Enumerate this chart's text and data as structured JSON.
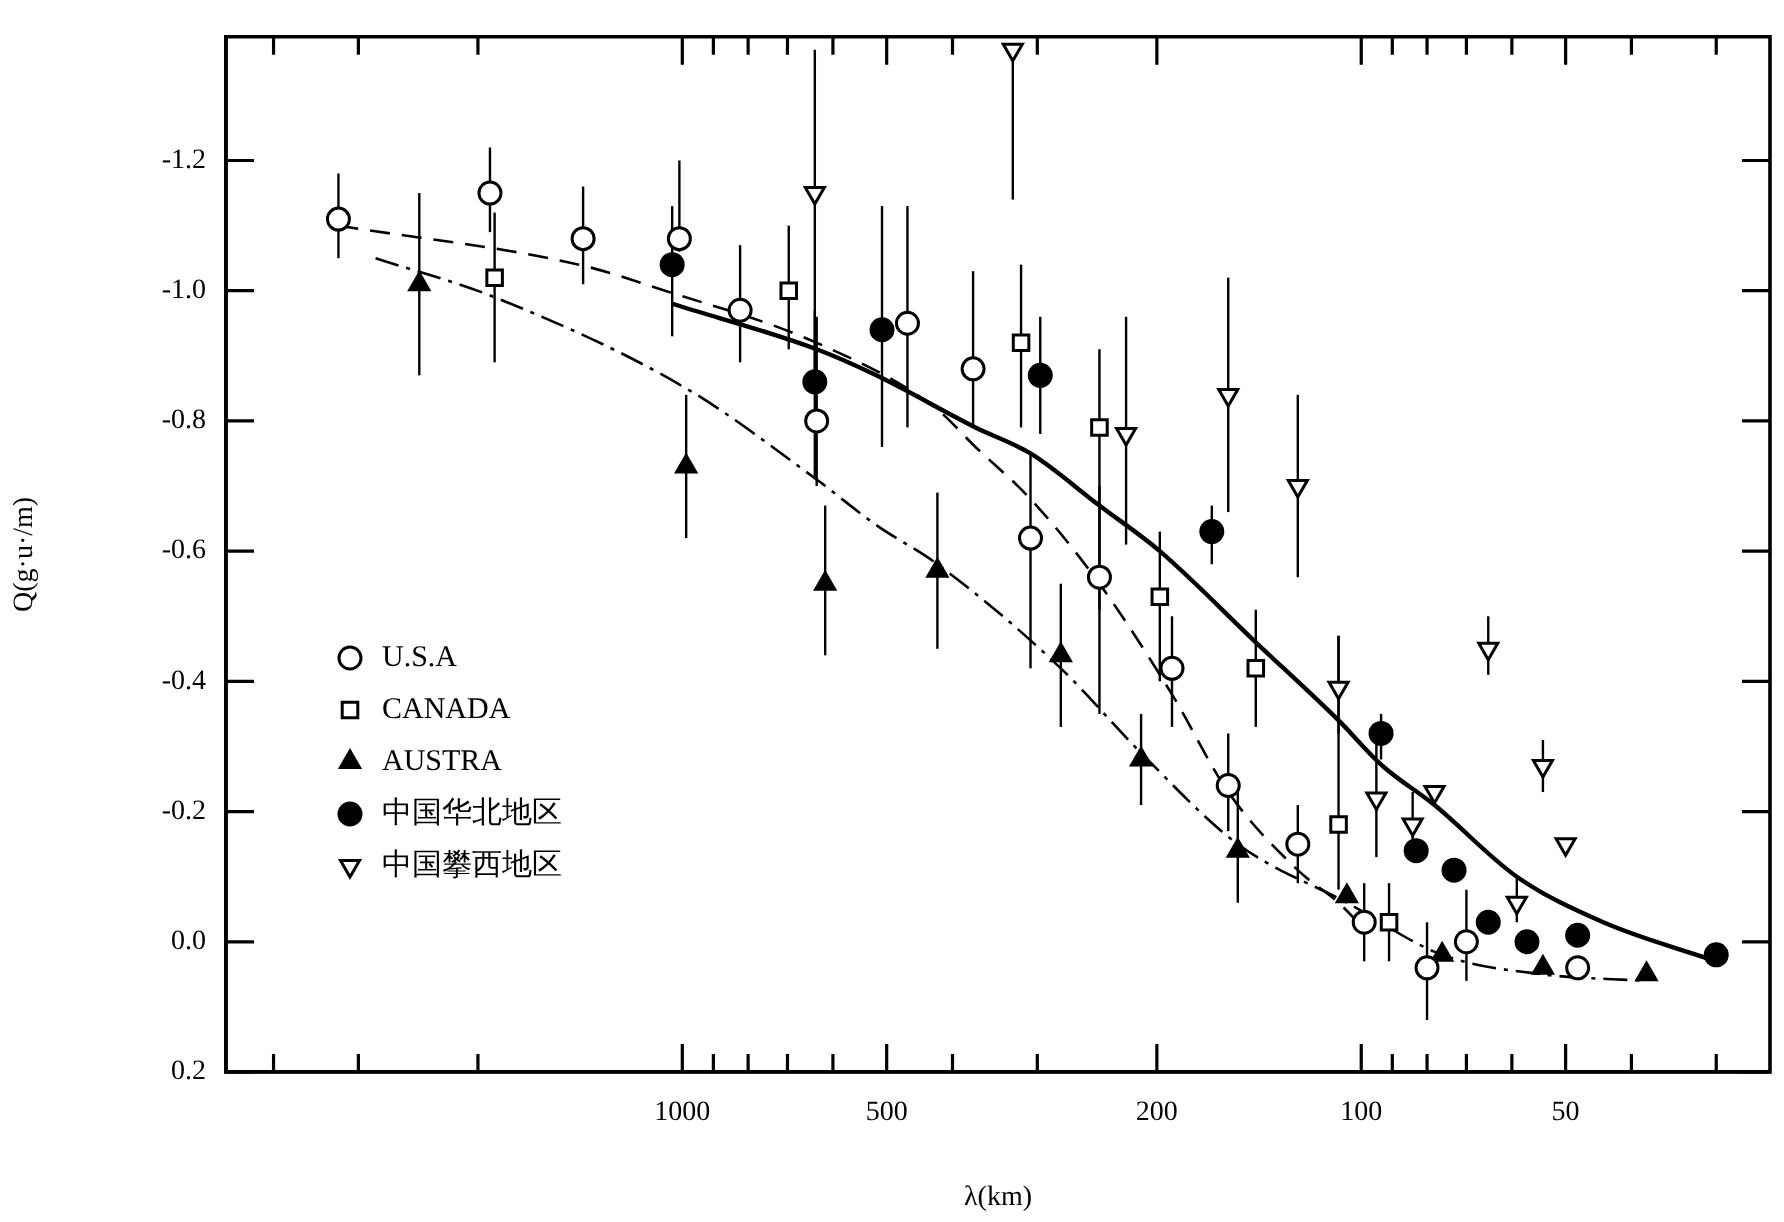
{
  "chart_data": {
    "type": "scatter",
    "xlabel": "λ(km)",
    "ylabel": "Q(g·u·/m)",
    "log": "x",
    "legend": "bottom left",
    "xlim": [
      4700,
      25
    ],
    "ylim": [
      0.2,
      -1.39
    ],
    "xticks": [
      {
        "value": 4000,
        "label": null
      },
      {
        "value": 3000,
        "label": null
      },
      {
        "value": 2000,
        "label": null
      },
      1000,
      {
        "value": 900,
        "label": null
      },
      {
        "value": 800,
        "label": null
      },
      {
        "value": 700,
        "label": null
      },
      {
        "value": 600,
        "label": null
      },
      500,
      {
        "value": 400,
        "label": null
      },
      {
        "value": 300,
        "label": null
      },
      200,
      100,
      {
        "value": 90,
        "label": null
      },
      {
        "value": 80,
        "label": null
      },
      {
        "value": 70,
        "label": null
      },
      {
        "value": 60,
        "label": null
      },
      50,
      {
        "value": 40,
        "label": null
      },
      {
        "value": 30,
        "label": null
      }
    ],
    "yticks": [
      -1.2,
      {
        "value": -1,
        "label": "-1.0"
      },
      -0.8,
      -0.6,
      -0.4,
      -0.2,
      {
        "value": 0,
        "label": "0.0"
      },
      0.2
    ],
    "series": [
      {
        "name": "U.S.A",
        "color": "#000000",
        "marker": "circle-open",
        "x": [
          3210,
          1920,
          1400,
          1010,
          822,
          634,
          466,
          373,
          307,
          243,
          190,
          157,
          124,
          99,
          80,
          70,
          48
        ],
        "values": [
          -1.11,
          -1.15,
          -1.08,
          -1.08,
          -0.97,
          -0.8,
          -0.95,
          -0.88,
          -0.62,
          -0.56,
          -0.42,
          -0.24,
          -0.15,
          -0.03,
          0.04,
          0.0,
          0.04
        ],
        "errors": [
          [
            -1.18,
            -1.05
          ],
          [
            -1.22,
            -1.09
          ],
          [
            -1.16,
            -1.01
          ],
          [
            -1.2,
            -1.06
          ],
          [
            -1.07,
            -0.89
          ],
          [
            -0.96,
            -0.7
          ],
          [
            -1.13,
            -0.79
          ],
          [
            -1.03,
            -0.79
          ],
          [
            -0.75,
            -0.42
          ],
          [
            -0.7,
            -0.35
          ],
          [
            -0.5,
            -0.33
          ],
          [
            -0.32,
            -0.17
          ],
          [
            -0.21,
            -0.09
          ],
          [
            -0.09,
            0.03
          ],
          [
            -0.03,
            0.12
          ],
          [
            -0.08,
            0.06
          ],
          null
        ]
      },
      {
        "name": "CANADA",
        "color": "#000000",
        "marker": "square-open",
        "x": [
          1890,
          697,
          317,
          243,
          198,
          143,
          108,
          91
        ],
        "values": [
          -1.02,
          -1.0,
          -0.92,
          -0.79,
          -0.53,
          -0.42,
          -0.18,
          -0.03
        ],
        "errors": [
          [
            -1.12,
            -0.89
          ],
          [
            -1.1,
            -0.91
          ],
          [
            -1.04,
            -0.79
          ],
          [
            -0.91,
            -0.51
          ],
          [
            -0.63,
            -0.4
          ],
          [
            -0.51,
            -0.33
          ],
          [
            -0.47,
            -0.08
          ],
          [
            -0.09,
            0.03
          ]
        ]
      },
      {
        "name": "AUSTRA",
        "color": "#000000",
        "marker": "triangle",
        "x": [
          2440,
          987,
          616,
          421,
          277,
          211,
          152,
          105,
          76,
          54,
          38
        ],
        "values": [
          -1.01,
          -0.73,
          -0.55,
          -0.57,
          -0.44,
          -0.28,
          -0.14,
          -0.07,
          0.02,
          0.04,
          0.05
        ],
        "errors": [
          [
            -1.15,
            -0.87
          ],
          [
            -0.84,
            -0.62
          ],
          [
            -0.67,
            -0.44
          ],
          [
            -0.69,
            -0.45
          ],
          [
            -0.55,
            -0.33
          ],
          [
            -0.35,
            -0.21
          ],
          [
            -0.24,
            -0.06
          ],
          null,
          null,
          null,
          null
        ]
      },
      {
        "name": "中国华北地区",
        "color": "#000000",
        "marker": "circle",
        "x": [
          1035,
          638,
          508,
          297,
          166,
          93.5,
          83,
          73,
          65,
          57,
          48,
          30
        ],
        "values": [
          -1.04,
          -0.86,
          -0.94,
          -0.87,
          -0.63,
          -0.32,
          -0.14,
          -0.11,
          -0.03,
          0.0,
          -0.01,
          0.02
        ],
        "errors": [
          [
            -1.13,
            -0.93
          ],
          [
            -0.97,
            -0.71
          ],
          [
            -1.13,
            -0.76
          ],
          [
            -0.96,
            -0.78
          ],
          [
            -0.67,
            -0.58
          ],
          [
            -0.35,
            -0.28
          ],
          null,
          null,
          null,
          null,
          null,
          null
        ]
      },
      {
        "name": "中国攀西地区",
        "color": "#000000",
        "marker": "triangle-down-open",
        "x": [
          638,
          326,
          222,
          157,
          124,
          108,
          95,
          84,
          78,
          65,
          59,
          54,
          50
        ],
        "values": [
          -1.15,
          -1.37,
          -0.78,
          -0.84,
          -0.7,
          -0.39,
          -0.22,
          -0.18,
          -0.23,
          -0.45,
          -0.06,
          -0.27,
          -0.15
        ],
        "errors": [
          [
            -1.37,
            -0.85
          ],
          [
            -1.37,
            -1.14
          ],
          [
            -0.96,
            -0.61
          ],
          [
            -1.02,
            -0.66
          ],
          [
            -0.84,
            -0.56
          ],
          [
            -0.47,
            -0.32
          ],
          [
            -0.32,
            -0.13
          ],
          [
            -0.23,
            -0.13
          ],
          null,
          [
            -0.5,
            -0.41
          ],
          [
            -0.1,
            -0.03
          ],
          [
            -0.31,
            -0.23
          ],
          null
        ]
      },
      {
        "type": "line",
        "color": "#000000",
        "line_style": "solid",
        "x": [
          1035,
          634,
          518,
          370,
          307,
          243,
          198,
          143,
          108,
          93,
          78,
          59,
          44,
          30
        ],
        "values": [
          -0.98,
          -0.91,
          -0.87,
          -0.79,
          -0.75,
          -0.67,
          -0.6,
          -0.46,
          -0.34,
          -0.27,
          -0.21,
          -0.1,
          -0.03,
          0.03
        ]
      },
      {
        "type": "line",
        "color": "#000000",
        "line_style": "dashed",
        "x": [
          3210,
          1420,
          1060,
          634,
          424,
          370,
          307,
          243,
          190,
          157,
          124,
          108,
          99
        ],
        "values": [
          -1.1,
          -1.04,
          -1.0,
          -0.92,
          -0.82,
          -0.76,
          -0.68,
          -0.55,
          -0.38,
          -0.23,
          -0.11,
          -0.06,
          -0.02
        ]
      },
      {
        "type": "line",
        "color": "#000000",
        "line_style": "dotted",
        "x": [
          2830,
          1890,
          987,
          634,
          518,
          421,
          277,
          211,
          152,
          105,
          76,
          54,
          38
        ],
        "values": [
          -1.05,
          -0.99,
          -0.85,
          -0.71,
          -0.64,
          -0.58,
          -0.42,
          -0.29,
          -0.15,
          -0.06,
          0.02,
          0.05,
          0.06
        ]
      }
    ]
  }
}
